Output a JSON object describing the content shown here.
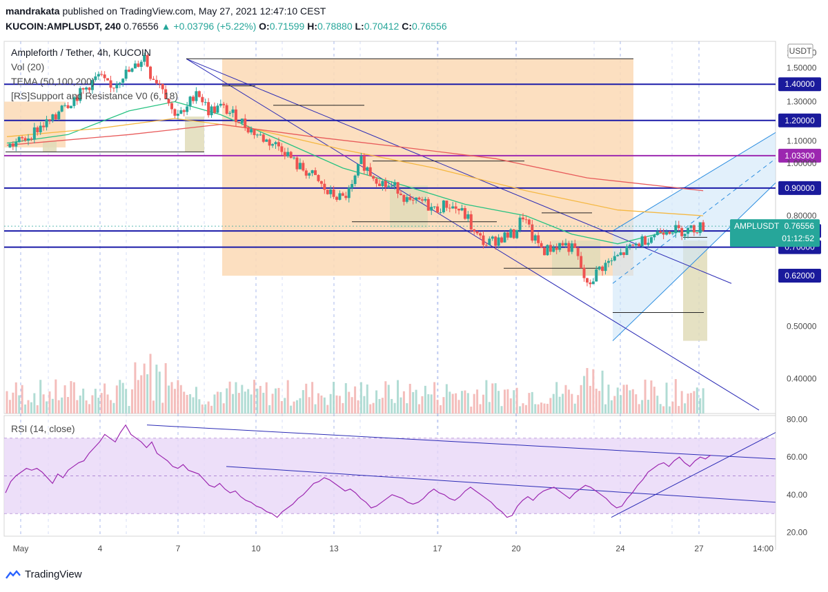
{
  "header": {
    "author": "mandrakata",
    "published": "published on TradingView.com, May 27, 2021 12:47:10 CEST",
    "symbol": "KUCOIN:AMPLUSDT, 240",
    "price": "0.76556",
    "change": "+0.03796 (+5.22%)",
    "o_label": "O:",
    "o": "0.71599",
    "h_label": "H:",
    "h": "0.78880",
    "l_label": "L:",
    "l": "0.70412",
    "c_label": "C:",
    "c": "0.76556"
  },
  "legends": {
    "title": "Ampleforth / Tether, 4h, KUCOIN",
    "vol": "Vol (20)",
    "tema": "TEMA (50,100,200)",
    "sr": "[RS]Support and Resistance V0 (6, 18)",
    "rsi": "RSI (14, close)"
  },
  "colors": {
    "up": "#26a69a",
    "down": "#ef5350",
    "hline": "#1a1aa8",
    "magenta": "#9c27b0",
    "ema_fast": "#26c281",
    "ema_mid": "#f5b842",
    "ema_slow": "#e85a5a",
    "rsi_line": "#9c27b0",
    "rsi_band": "#e9d7f7",
    "zone_peach": "#fcd9b5",
    "zone_olive": "#e1dcb8",
    "channel": "#cfe6f8"
  },
  "chart_data": [
    {
      "type": "candlestick",
      "title": "Ampleforth / Tether, 4h, KUCOIN",
      "currency": "USDT",
      "y_axis": {
        "ticks": [
          "1.60000",
          "1.50000",
          "1.40000",
          "1.30000",
          "1.20000",
          "1.10000",
          "1.00000",
          "0.90000",
          "0.80000",
          "0.75000",
          "0.70000",
          "0.62000",
          "0.50000",
          "0.40000"
        ],
        "scale": "log",
        "ylim": [
          0.345,
          1.68
        ]
      },
      "x_axis": {
        "ticks": [
          "May",
          "4",
          "7",
          "10",
          "13",
          "17",
          "20",
          "24",
          "27",
          "14:00"
        ]
      },
      "horizontal_levels": [
        {
          "value": 1.4,
          "label": "1.40000",
          "style": "line"
        },
        {
          "value": 1.2,
          "label": "1.20000",
          "style": "line"
        },
        {
          "value": 1.033,
          "label": "1.03300",
          "style": "magenta"
        },
        {
          "value": 0.9,
          "label": "0.90000",
          "style": "line"
        },
        {
          "value": 0.75,
          "label": "0.75000",
          "style": "line"
        },
        {
          "value": 0.7,
          "label": "0.70000",
          "style": "line"
        },
        {
          "value": 0.62,
          "label": "0.62000",
          "style": "tag"
        }
      ],
      "last_price": {
        "label": "AMPLUSDT",
        "value": "0.76556",
        "countdown": "01:12:52"
      },
      "close_path": [
        [
          0,
          1.07
        ],
        [
          6,
          1.11
        ],
        [
          11,
          1.17
        ],
        [
          16,
          1.21
        ],
        [
          18,
          1.3
        ],
        [
          20,
          1.29
        ],
        [
          25,
          1.36
        ],
        [
          30,
          1.45
        ],
        [
          34,
          1.37
        ],
        [
          38,
          1.46
        ],
        [
          41,
          1.48
        ],
        [
          45,
          1.58
        ],
        [
          47,
          1.46
        ],
        [
          51,
          1.39
        ],
        [
          54,
          1.25
        ],
        [
          58,
          1.23
        ],
        [
          62,
          1.37
        ],
        [
          66,
          1.25
        ],
        [
          70,
          1.27
        ],
        [
          75,
          1.22
        ],
        [
          80,
          1.15
        ],
        [
          85,
          1.1
        ],
        [
          90,
          1.07
        ],
        [
          95,
          0.99
        ],
        [
          100,
          0.95
        ],
        [
          105,
          0.88
        ],
        [
          110,
          0.86
        ],
        [
          113,
          0.9
        ],
        [
          116,
          1.01
        ],
        [
          119,
          0.96
        ],
        [
          124,
          0.91
        ],
        [
          128,
          0.9
        ],
        [
          132,
          0.84
        ],
        [
          136,
          0.85
        ],
        [
          140,
          0.82
        ],
        [
          144,
          0.84
        ],
        [
          148,
          0.82
        ],
        [
          151,
          0.79
        ],
        [
          153,
          0.74
        ],
        [
          157,
          0.71
        ],
        [
          162,
          0.73
        ],
        [
          166,
          0.74
        ],
        [
          169,
          0.8
        ],
        [
          172,
          0.73
        ],
        [
          176,
          0.69
        ],
        [
          182,
          0.71
        ],
        [
          186,
          0.69
        ],
        [
          190,
          0.59
        ],
        [
          194,
          0.64
        ],
        [
          198,
          0.66
        ],
        [
          203,
          0.69
        ],
        [
          208,
          0.72
        ],
        [
          212,
          0.74
        ],
        [
          216,
          0.76
        ],
        [
          220,
          0.75
        ],
        [
          224,
          0.755
        ],
        [
          228,
          0.765
        ]
      ],
      "volume_ylim": [
        0,
        1
      ],
      "tema_fast": [
        [
          0,
          1.09
        ],
        [
          20,
          1.13
        ],
        [
          40,
          1.25
        ],
        [
          55,
          1.3
        ],
        [
          70,
          1.23
        ],
        [
          90,
          1.1
        ],
        [
          110,
          0.98
        ],
        [
          130,
          0.91
        ],
        [
          150,
          0.84
        ],
        [
          170,
          0.8
        ],
        [
          185,
          0.74
        ],
        [
          200,
          0.71
        ],
        [
          215,
          0.745
        ],
        [
          228,
          0.75
        ]
      ],
      "tema_mid": [
        [
          0,
          1.12
        ],
        [
          30,
          1.16
        ],
        [
          55,
          1.21
        ],
        [
          80,
          1.16
        ],
        [
          110,
          1.06
        ],
        [
          140,
          0.98
        ],
        [
          170,
          0.89
        ],
        [
          200,
          0.82
        ],
        [
          228,
          0.8
        ]
      ],
      "tema_slow": [
        [
          0,
          1.08
        ],
        [
          40,
          1.13
        ],
        [
          70,
          1.18
        ],
        [
          100,
          1.12
        ],
        [
          130,
          1.07
        ],
        [
          160,
          1.02
        ],
        [
          190,
          0.94
        ],
        [
          228,
          0.89
        ]
      ]
    },
    {
      "type": "line",
      "title": "RSI (14, close)",
      "y_axis": {
        "ticks": [
          "80.00",
          "60.00",
          "40.00",
          "20.00"
        ],
        "ylim": [
          18,
          82
        ]
      },
      "band": [
        30,
        70
      ],
      "values": [
        41,
        47,
        50,
        52,
        54,
        53,
        54,
        52,
        49,
        46,
        51,
        49,
        53,
        55,
        57,
        58,
        62,
        65,
        68,
        72,
        70,
        68,
        73,
        77,
        72,
        70,
        68,
        65,
        68,
        62,
        60,
        58,
        55,
        54,
        56,
        53,
        52,
        51,
        48,
        45,
        44,
        46,
        43,
        41,
        42,
        39,
        37,
        36,
        34,
        33,
        31,
        30,
        28,
        31,
        33,
        35,
        38,
        40,
        43,
        46,
        47,
        49,
        48,
        46,
        44,
        42,
        43,
        41,
        38,
        36,
        33,
        34,
        36,
        38,
        40,
        39,
        38,
        36,
        35,
        36,
        38,
        41,
        43,
        41,
        40,
        38,
        37,
        39,
        42,
        44,
        42,
        40,
        38,
        36,
        33,
        31,
        28,
        29,
        34,
        37,
        39,
        37,
        40,
        42,
        43,
        44,
        42,
        40,
        38,
        41,
        43,
        45,
        44,
        42,
        40,
        38,
        35,
        33,
        34,
        38,
        41,
        45,
        48,
        52,
        54,
        56,
        57,
        55,
        58,
        60,
        57,
        55,
        58,
        60,
        59,
        61
      ]
    }
  ],
  "footer": {
    "brand": "TradingView"
  }
}
